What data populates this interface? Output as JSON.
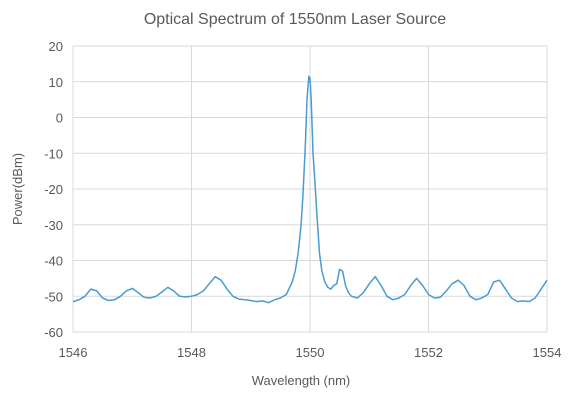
{
  "chart_data": {
    "type": "line",
    "title": "Optical Spectrum of 1550nm Laser Source",
    "xlabel": "Wavelength (nm)",
    "ylabel": "Power(dBm)",
    "xlim": [
      1546,
      1554
    ],
    "ylim": [
      -60,
      20
    ],
    "x_ticks": [
      1546,
      1548,
      1550,
      1552,
      1554
    ],
    "y_ticks": [
      20,
      10,
      0,
      -10,
      -20,
      -30,
      -40,
      -50,
      -60
    ],
    "grid": {
      "x": true,
      "y": true
    },
    "legend": "none",
    "series": [
      {
        "color": "#4a9bd1",
        "x": [
          1546.0,
          1546.1,
          1546.2,
          1546.3,
          1546.4,
          1546.5,
          1546.6,
          1546.7,
          1546.8,
          1546.9,
          1547.0,
          1547.1,
          1547.2,
          1547.3,
          1547.4,
          1547.5,
          1547.6,
          1547.7,
          1547.8,
          1547.9,
          1548.0,
          1548.1,
          1548.2,
          1548.3,
          1548.4,
          1548.5,
          1548.6,
          1548.7,
          1548.8,
          1548.9,
          1549.0,
          1549.1,
          1549.2,
          1549.3,
          1549.4,
          1549.5,
          1549.6,
          1549.7,
          1549.75,
          1549.8,
          1549.85,
          1549.88,
          1549.92,
          1549.95,
          1549.98,
          1550.0,
          1550.02,
          1550.05,
          1550.08,
          1550.12,
          1550.16,
          1550.2,
          1550.25,
          1550.3,
          1550.35,
          1550.4,
          1550.45,
          1550.5,
          1550.55,
          1550.6,
          1550.65,
          1550.7,
          1550.8,
          1550.9,
          1551.0,
          1551.1,
          1551.2,
          1551.3,
          1551.4,
          1551.5,
          1551.6,
          1551.7,
          1551.8,
          1551.9,
          1552.0,
          1552.1,
          1552.2,
          1552.3,
          1552.4,
          1552.5,
          1552.6,
          1552.7,
          1552.8,
          1552.9,
          1553.0,
          1553.1,
          1553.2,
          1553.3,
          1553.4,
          1553.5,
          1553.6,
          1553.7,
          1553.8,
          1553.9,
          1554.0
        ],
        "y": [
          -51.5,
          -51.0,
          -50.0,
          -48.0,
          -48.5,
          -50.5,
          -51.2,
          -51.0,
          -50.0,
          -48.5,
          -47.8,
          -49.0,
          -50.3,
          -50.5,
          -50.0,
          -48.8,
          -47.5,
          -48.5,
          -50.0,
          -50.2,
          -50.0,
          -49.5,
          -48.5,
          -46.5,
          -44.5,
          -45.5,
          -48.0,
          -50.0,
          -50.8,
          -51.0,
          -51.2,
          -51.5,
          -51.3,
          -51.8,
          -51.0,
          -50.5,
          -49.5,
          -46.0,
          -43.0,
          -38.0,
          -30.0,
          -22.0,
          -8.0,
          5.0,
          11.5,
          11.0,
          5.0,
          -10.0,
          -17.0,
          -28.0,
          -38.0,
          -43.0,
          -46.0,
          -47.5,
          -48.0,
          -47.0,
          -46.5,
          -42.5,
          -43.0,
          -47.0,
          -49.0,
          -50.0,
          -50.5,
          -49.0,
          -46.5,
          -44.5,
          -47.0,
          -50.0,
          -51.0,
          -50.5,
          -49.5,
          -47.0,
          -45.0,
          -47.0,
          -49.5,
          -50.5,
          -50.3,
          -48.5,
          -46.5,
          -45.5,
          -47.0,
          -50.0,
          -51.0,
          -50.5,
          -49.5,
          -46.0,
          -45.5,
          -48.0,
          -50.5,
          -51.5,
          -51.3,
          -51.5,
          -50.5,
          -48.0,
          -45.5
        ]
      }
    ]
  }
}
